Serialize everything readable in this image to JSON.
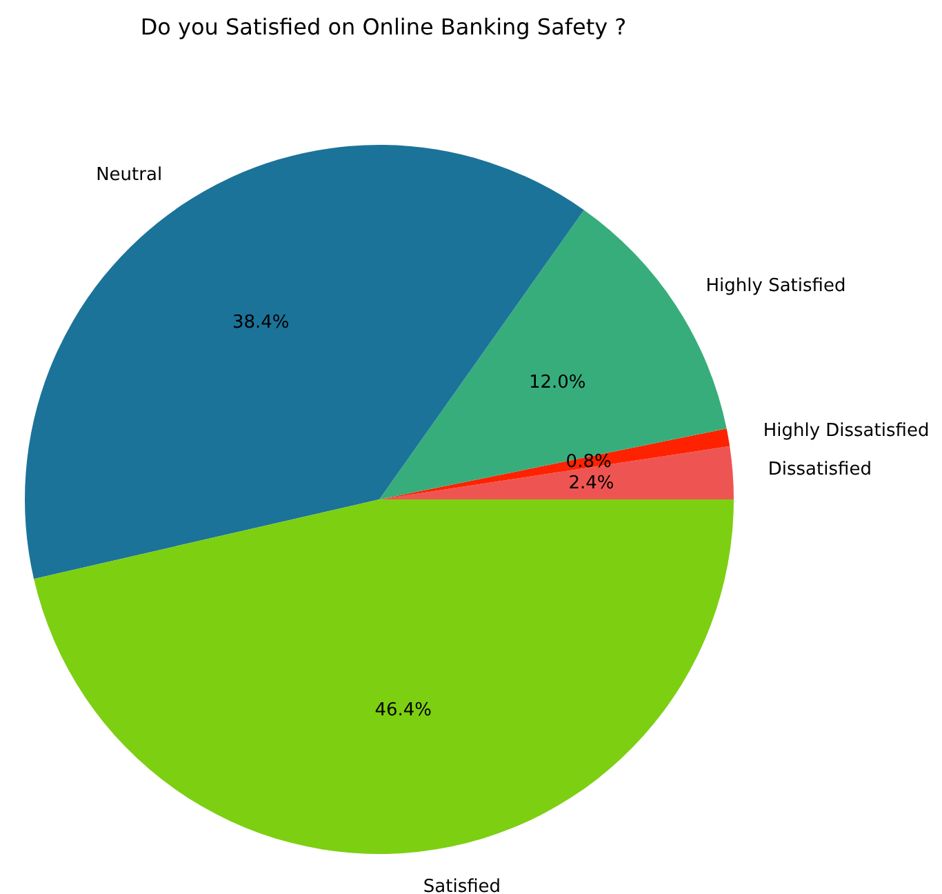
{
  "chart_data": {
    "type": "pie",
    "title": "Do you Satisfied on Online Banking Safety ?",
    "categories": [
      "Dissatisfied",
      "Highly Dissatisfied",
      "Highly Satisfied",
      "Neutral",
      "Satisfied"
    ],
    "values": [
      2.4,
      0.8,
      12.0,
      38.4,
      46.4
    ],
    "colors": [
      "#ee5552",
      "#ff2200",
      "#37ad7c",
      "#1b7399",
      "#7dcf12"
    ],
    "value_labels": [
      "2.4%",
      "0.8%",
      "12.0%",
      "38.4%",
      "46.4%"
    ]
  }
}
